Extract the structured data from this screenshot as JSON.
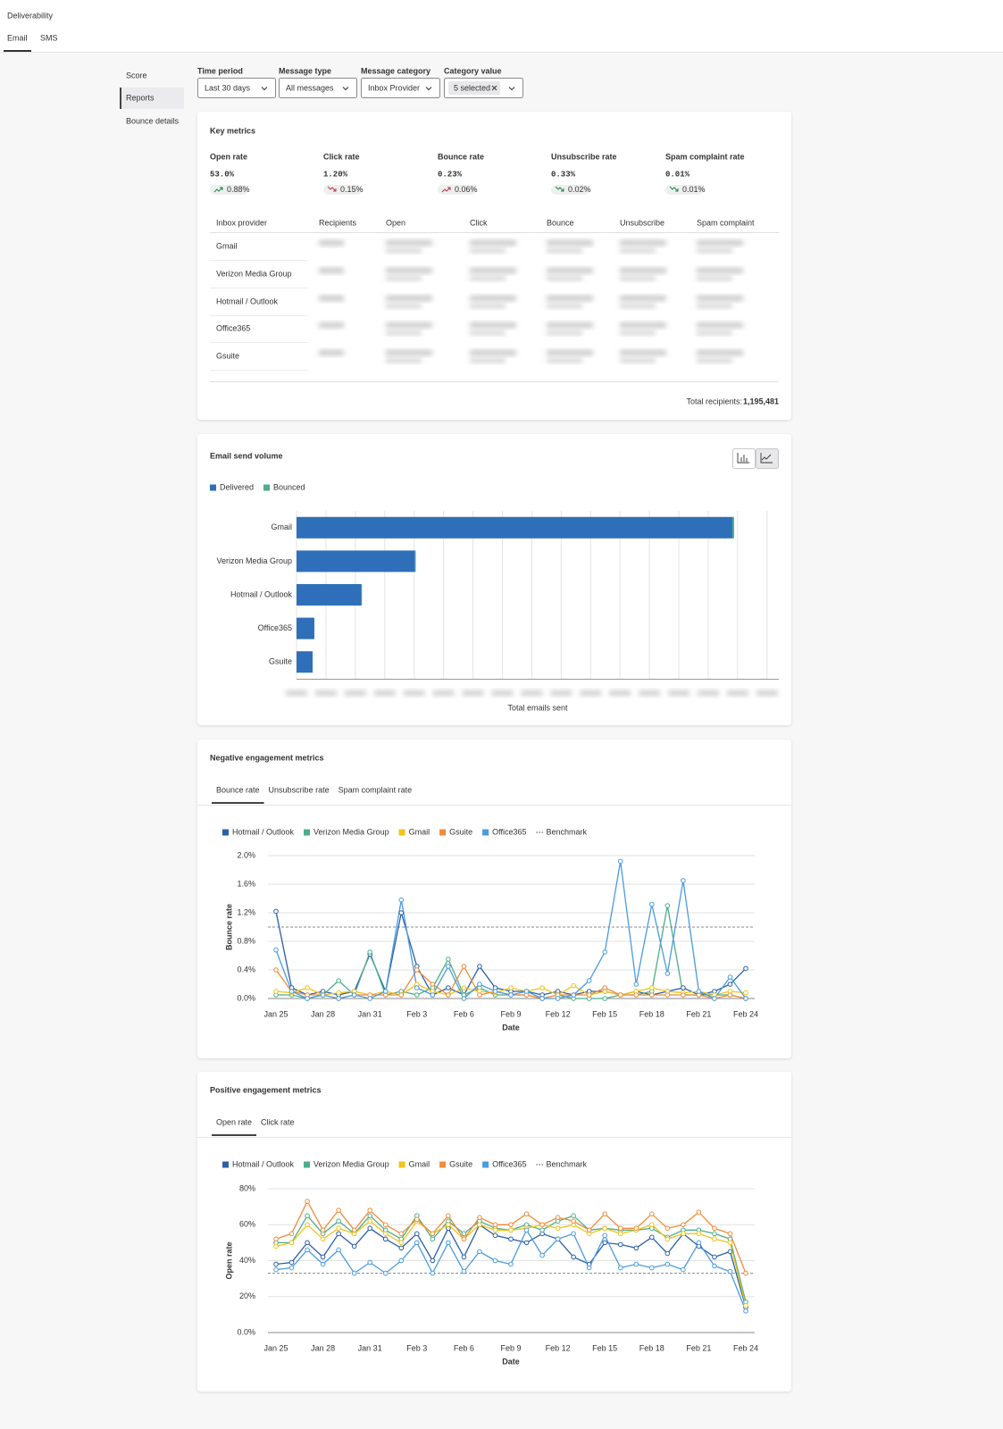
{
  "header": {
    "title": "Deliverability",
    "tabs": [
      "Email",
      "SMS"
    ]
  },
  "sidebar": [
    "Score",
    "Reports",
    "Bounce details"
  ],
  "filters": [
    {
      "label": "Time period",
      "value": "Last 30 days"
    },
    {
      "label": "Message type",
      "value": "All messages"
    },
    {
      "label": "Message category",
      "value": "Inbox Provider"
    },
    {
      "label": "Category value",
      "value": "5 selected"
    }
  ],
  "key_metrics": {
    "title": "Key metrics",
    "metrics": [
      {
        "name": "Open rate",
        "value": "53.0%",
        "change": "0.88%",
        "trend": "up",
        "trend_color": "#1e8a4c"
      },
      {
        "name": "Click rate",
        "value": "1.20%",
        "change": "0.15%",
        "trend": "down",
        "trend_color": "#c4314b"
      },
      {
        "name": "Bounce rate",
        "value": "0.23%",
        "change": "0.06%",
        "trend": "up",
        "trend_color": "#c4314b"
      },
      {
        "name": "Unsubscribe rate",
        "value": "0.33%",
        "change": "0.02%",
        "trend": "down",
        "trend_color": "#1e8a4c"
      },
      {
        "name": "Spam complaint rate",
        "value": "0.01%",
        "change": "0.01%",
        "trend": "down",
        "trend_color": "#1e8a4c"
      }
    ],
    "table": {
      "columns": [
        "Inbox provider",
        "Recipients",
        "Open",
        "Click",
        "Bounce",
        "Unsubscribe",
        "Spam complaint"
      ],
      "rows": [
        "Gmail",
        "Verizon Media Group",
        "Hotmail / Outlook",
        "Office365",
        "Gsuite"
      ]
    },
    "total_label": "Total recipients:",
    "total": "1,195,481"
  },
  "chart_data": [
    {
      "type": "bar",
      "orientation": "horizontal",
      "stacked": true,
      "title": "Email send volume",
      "xlabel": "Total emails sent",
      "categories": [
        "Gmail",
        "Verizon Media Group",
        "Hotmail / Outlook",
        "Office365",
        "Gsuite"
      ],
      "series": [
        {
          "name": "Delivered",
          "color": "#2f6fba",
          "values": [
            741000,
            201500,
            110600,
            30300,
            27300
          ]
        },
        {
          "name": "Bounced",
          "color": "#4cae8a",
          "values": [
            3000,
            1200,
            600,
            150,
            120
          ]
        }
      ],
      "xlim": [
        0,
        820000
      ],
      "xticks": [
        0,
        50000,
        100000,
        150000,
        200000,
        250000,
        300000,
        350000,
        400000,
        450000,
        500000,
        550000,
        600000,
        650000,
        700000,
        750000,
        800000
      ],
      "grid": true,
      "legend": "top-left"
    },
    {
      "type": "line",
      "title": "Negative engagement metrics",
      "tabs": [
        "Bounce rate",
        "Unsubscribe rate",
        "Spam complaint rate"
      ],
      "active_tab": 0,
      "xlabel": "Date",
      "ylabel": "Bounce rate",
      "categories": [
        "Jan 25",
        null,
        null,
        "Jan 28",
        null,
        null,
        "Jan 31",
        null,
        null,
        "Feb 3",
        null,
        null,
        "Feb 6",
        null,
        null,
        "Feb 9",
        null,
        null,
        "Feb 12",
        null,
        null,
        "Feb 15",
        null,
        null,
        "Feb 18",
        null,
        null,
        "Feb 21",
        null,
        null,
        "Feb 24"
      ],
      "series": [
        {
          "name": "Hotmail / Outlook",
          "color": "#2b5fa8",
          "values": [
            1.22,
            0.15,
            0.05,
            0.1,
            0.05,
            0.1,
            0.62,
            0.1,
            1.2,
            0.45,
            0.05,
            0.15,
            0.05,
            0.45,
            0.15,
            0.1,
            0.1,
            0.05,
            0.1,
            0.05,
            0.1,
            0.1,
            0.05,
            0.1,
            0.05,
            0.1,
            0.15,
            0.05,
            0.1,
            0.2,
            0.42
          ]
        },
        {
          "name": "Verizon Media Group",
          "color": "#4cae8a",
          "values": [
            0.05,
            0.05,
            0,
            0.05,
            0.25,
            0.05,
            0.65,
            0.05,
            0.1,
            0.05,
            0.15,
            0.55,
            0.05,
            0.15,
            0.05,
            0.05,
            0.05,
            0,
            0.05,
            0,
            0,
            0,
            0.05,
            0.05,
            0.1,
            1.3,
            0.05,
            0.05,
            0.05,
            0.05,
            0
          ]
        },
        {
          "name": "Gmail",
          "color": "#f2c318",
          "values": [
            0.1,
            0.08,
            0.15,
            0.05,
            0.08,
            0.1,
            0.05,
            0.1,
            0.05,
            0.2,
            0.1,
            0.05,
            0.15,
            0.1,
            0.08,
            0.15,
            0.1,
            0.15,
            0.05,
            0.18,
            0.05,
            0.1,
            0.05,
            0.1,
            0.15,
            0.1,
            0.08,
            0.1,
            0.05,
            0.1,
            0.08
          ]
        },
        {
          "name": "Gsuite",
          "color": "#ef8c3a",
          "values": [
            0.4,
            0.1,
            0.05,
            0.05,
            0,
            0.05,
            0.05,
            0.05,
            0.05,
            0.4,
            0.2,
            0.05,
            0.45,
            0.05,
            0.1,
            0.05,
            0.05,
            0,
            0.05,
            0.05,
            0.05,
            0.15,
            0.05,
            0.05,
            0.05,
            0.05,
            0.05,
            0.05,
            0,
            0.05,
            0
          ]
        },
        {
          "name": "Office365",
          "color": "#4a9be0",
          "values": [
            0.68,
            0.1,
            0,
            0.05,
            0,
            0.05,
            0,
            0.1,
            1.38,
            0.15,
            0.05,
            0.45,
            0,
            0.2,
            0.1,
            0.05,
            0.1,
            0,
            0,
            0.05,
            0.25,
            0.65,
            1.92,
            0.2,
            1.32,
            0.35,
            1.65,
            0.1,
            0,
            0.3,
            0
          ]
        }
      ],
      "benchmark": {
        "name": "Benchmark",
        "value": 1.0,
        "color": "#888888"
      },
      "ylim": [
        0,
        2.0
      ],
      "yticks": [
        {
          "value": 0,
          "label": "0.0%"
        },
        {
          "value": 0.4,
          "label": "0.4%"
        },
        {
          "value": 0.8,
          "label": "0.8%"
        },
        {
          "value": 1.2,
          "label": "1.2%"
        },
        {
          "value": 1.6,
          "label": "1.6%"
        },
        {
          "value": 2.0,
          "label": "2.0%"
        }
      ],
      "grid": true,
      "legend": "top-left"
    },
    {
      "type": "line",
      "title": "Positive engagement metrics",
      "tabs": [
        "Open rate",
        "Click rate"
      ],
      "active_tab": 0,
      "xlabel": "Date",
      "ylabel": "Open rate",
      "categories": [
        "Jan 25",
        null,
        null,
        "Jan 28",
        null,
        null,
        "Jan 31",
        null,
        null,
        "Feb 3",
        null,
        null,
        "Feb 6",
        null,
        null,
        "Feb 9",
        null,
        null,
        "Feb 12",
        null,
        null,
        "Feb 15",
        null,
        null,
        "Feb 18",
        null,
        null,
        "Feb 21",
        null,
        null,
        "Feb 24"
      ],
      "series": [
        {
          "name": "Hotmail / Outlook",
          "color": "#2b5fa8",
          "values": [
            38,
            39,
            50,
            42,
            55,
            48,
            58,
            52,
            47,
            55,
            40,
            58,
            42,
            60,
            54,
            52,
            50,
            55,
            52,
            42,
            38,
            50,
            49,
            47,
            53,
            44,
            55,
            48,
            42,
            45,
            14
          ]
        },
        {
          "name": "Verizon Media Group",
          "color": "#4cae8a",
          "values": [
            50,
            50,
            65,
            55,
            62,
            55,
            65,
            57,
            52,
            65,
            52,
            62,
            55,
            62,
            58,
            57,
            60,
            57,
            62,
            65,
            57,
            58,
            57,
            57,
            58,
            53,
            57,
            57,
            55,
            52,
            17
          ]
        },
        {
          "name": "Gmail",
          "color": "#f2c318",
          "values": [
            48,
            50,
            60,
            52,
            58,
            55,
            62,
            55,
            50,
            62,
            55,
            60,
            52,
            60,
            57,
            57,
            58,
            60,
            58,
            60,
            55,
            58,
            55,
            57,
            60,
            52,
            55,
            55,
            52,
            50,
            15
          ]
        },
        {
          "name": "Gsuite",
          "color": "#ef8c3a",
          "values": [
            52,
            55,
            73,
            57,
            68,
            57,
            68,
            60,
            55,
            63,
            55,
            65,
            52,
            64,
            60,
            60,
            66,
            60,
            64,
            62,
            57,
            66,
            58,
            58,
            66,
            58,
            60,
            67,
            58,
            55,
            33
          ]
        },
        {
          "name": "Office365",
          "color": "#4a9be0",
          "values": [
            35,
            36,
            46,
            38,
            46,
            33,
            39,
            33,
            40,
            50,
            33,
            50,
            34,
            45,
            40,
            38,
            57,
            43,
            52,
            55,
            36,
            54,
            36,
            38,
            36,
            38,
            35,
            50,
            37,
            34,
            12
          ]
        }
      ],
      "benchmark": {
        "name": "Benchmark",
        "value": 33,
        "color": "#888888"
      },
      "ylim": [
        0,
        80
      ],
      "yticks": [
        {
          "value": 0,
          "label": "0.0%"
        },
        {
          "value": 20,
          "label": "20%"
        },
        {
          "value": 40,
          "label": "40%"
        },
        {
          "value": 60,
          "label": "60%"
        },
        {
          "value": 80,
          "label": "80%"
        }
      ],
      "grid": true,
      "legend": "top-left"
    }
  ]
}
